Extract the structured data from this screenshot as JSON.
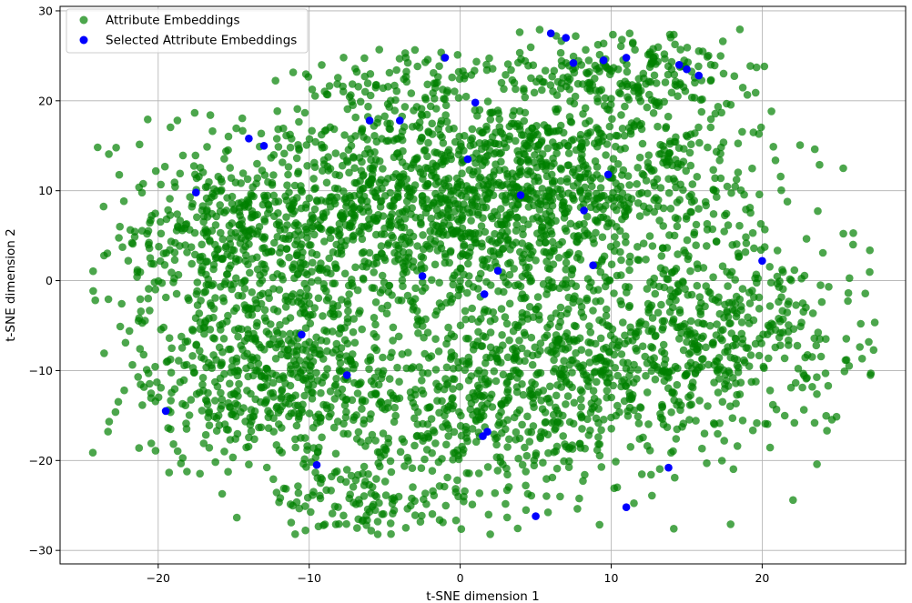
{
  "chart_data": {
    "type": "scatter",
    "xlabel": "t-SNE dimension 1",
    "ylabel": "t-SNE dimension 2",
    "xlim": [
      -26.5,
      29.5
    ],
    "ylim": [
      -31.5,
      30.5
    ],
    "xticks": [
      -20,
      -10,
      0,
      10,
      20
    ],
    "yticks": [
      -30,
      -20,
      -10,
      0,
      10,
      20,
      30
    ],
    "grid": true,
    "legend_position": "upper-left",
    "series": [
      {
        "name": "Attribute Embeddings",
        "color": "#008000",
        "opacity": 0.7,
        "approx_count": 4200,
        "clusters": [
          {
            "cx": -6,
            "cy": 8,
            "sx": 7,
            "sy": 6,
            "w": 0.17
          },
          {
            "cx": 2,
            "cy": 9,
            "sx": 6,
            "sy": 6,
            "w": 0.16
          },
          {
            "cx": 11,
            "cy": 13,
            "sx": 5,
            "sy": 6,
            "w": 0.09
          },
          {
            "cx": 11,
            "cy": 23,
            "sx": 3.5,
            "sy": 2.5,
            "w": 0.04
          },
          {
            "cx": -15,
            "cy": 3,
            "sx": 4,
            "sy": 5,
            "w": 0.07
          },
          {
            "cx": -12,
            "cy": -11,
            "sx": 6,
            "sy": 5,
            "w": 0.14
          },
          {
            "cx": 8,
            "cy": -10,
            "sx": 6,
            "sy": 5,
            "w": 0.15
          },
          {
            "cx": 19,
            "cy": -5,
            "sx": 4.5,
            "sy": 6,
            "w": 0.08
          },
          {
            "cx": 0,
            "cy": -18,
            "sx": 4.5,
            "sy": 5,
            "w": 0.06
          },
          {
            "cx": -7,
            "cy": -25,
            "sx": 3,
            "sy": 2,
            "w": 0.02
          },
          {
            "cx": -4,
            "cy": 22,
            "sx": 4,
            "sy": 2,
            "w": 0.02
          }
        ]
      },
      {
        "name": "Selected Attribute Embeddings",
        "color": "#0000ff",
        "opacity": 1,
        "points": [
          [
            6.0,
            27.5
          ],
          [
            7.0,
            27.0
          ],
          [
            7.5,
            24.2
          ],
          [
            9.5,
            24.5
          ],
          [
            11.0,
            24.8
          ],
          [
            14.5,
            24.0
          ],
          [
            15.0,
            23.5
          ],
          [
            15.8,
            22.8
          ],
          [
            -1.0,
            24.8
          ],
          [
            1.0,
            19.8
          ],
          [
            -6.0,
            17.8
          ],
          [
            -4.0,
            17.8
          ],
          [
            -14.0,
            15.8
          ],
          [
            -13.0,
            15.0
          ],
          [
            0.5,
            13.5
          ],
          [
            9.8,
            11.8
          ],
          [
            -17.5,
            9.8
          ],
          [
            4.0,
            9.5
          ],
          [
            8.2,
            7.8
          ],
          [
            8.8,
            1.7
          ],
          [
            20.0,
            2.2
          ],
          [
            -2.5,
            0.5
          ],
          [
            2.5,
            1.1
          ],
          [
            1.6,
            -1.5
          ],
          [
            -10.5,
            -6.0
          ],
          [
            -7.5,
            -10.5
          ],
          [
            -19.5,
            -14.5
          ],
          [
            1.5,
            -17.3
          ],
          [
            1.8,
            -16.8
          ],
          [
            -9.5,
            -20.5
          ],
          [
            13.8,
            -20.8
          ],
          [
            11.0,
            -25.2
          ],
          [
            5.0,
            -26.2
          ]
        ]
      }
    ]
  }
}
